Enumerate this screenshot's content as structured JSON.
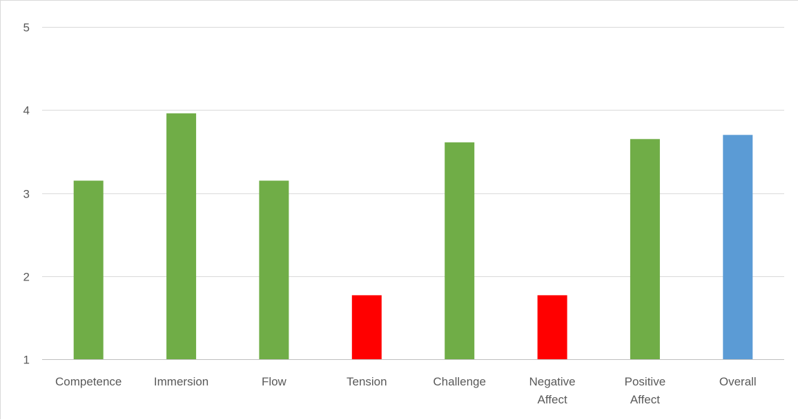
{
  "chart_data": {
    "type": "bar",
    "title": "",
    "xlabel": "",
    "ylabel": "",
    "ylim": [
      1,
      5
    ],
    "yticks": [
      1,
      2,
      3,
      4,
      5
    ],
    "grid": true,
    "legend": "none",
    "categories": [
      [
        "Competence"
      ],
      [
        "Immersion"
      ],
      [
        "Flow"
      ],
      [
        "Tension"
      ],
      [
        "Challenge"
      ],
      [
        "Negative",
        "Affect"
      ],
      [
        "Positive",
        "Affect"
      ],
      [
        "Overall"
      ]
    ],
    "values": [
      3.15,
      3.96,
      3.15,
      1.77,
      3.61,
      1.77,
      3.65,
      3.7
    ],
    "colors": [
      "#70ad47",
      "#70ad47",
      "#70ad47",
      "#ff0000",
      "#70ad47",
      "#ff0000",
      "#70ad47",
      "#5b9bd5"
    ]
  }
}
